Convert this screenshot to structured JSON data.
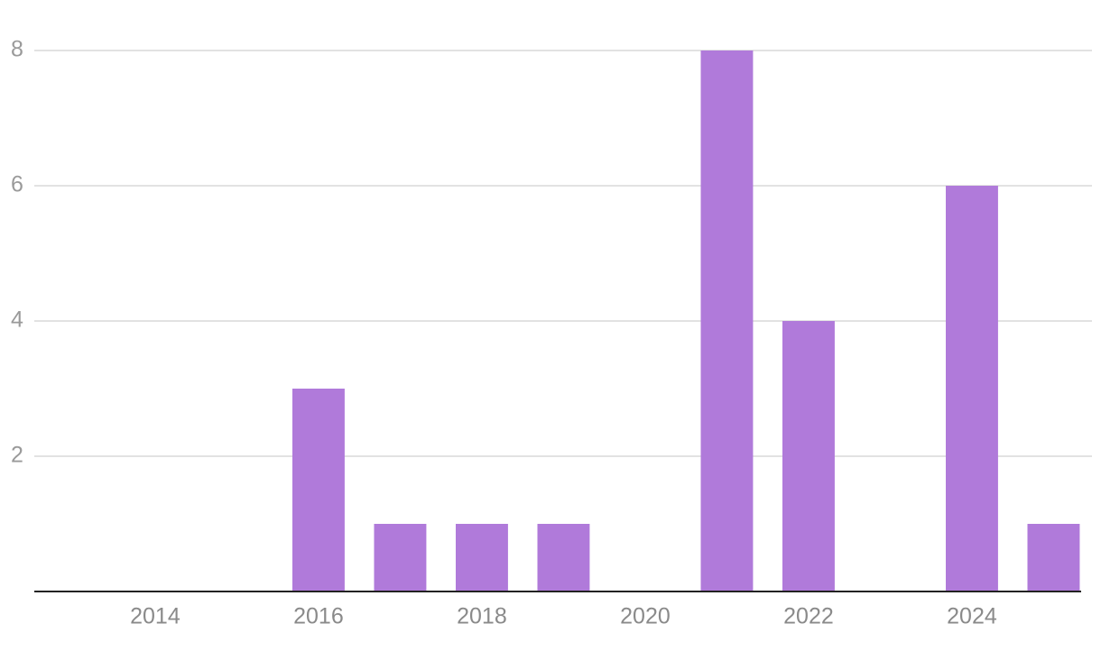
{
  "chart_data": {
    "type": "bar",
    "x": [
      2016,
      2017,
      2018,
      2019,
      2021,
      2022,
      2024,
      2025
    ],
    "values": [
      3,
      1,
      1,
      1,
      8,
      4,
      6,
      1
    ],
    "color": "#b07ada",
    "xlim": [
      2012.52,
      2025.47
    ],
    "xticks": [
      2014,
      2016,
      2018,
      2020,
      2022,
      2024
    ],
    "ylim": [
      0,
      8
    ],
    "yticks": [
      2,
      4,
      6,
      8
    ],
    "grid": true
  }
}
